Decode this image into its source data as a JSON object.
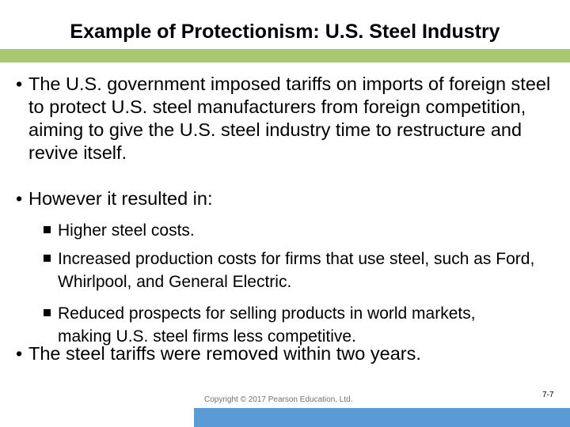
{
  "slide": {
    "title": "Example of Protectionism: U.S. Steel Industry",
    "bullet_char": "•",
    "bullets": [
      "The U.S. government imposed tariffs on imports of foreign steel to protect U.S. steel manufacturers from foreign competition, aiming to give the U.S. steel industry time to restructure and revive itself.",
      "However it resulted in:",
      "The steel tariffs were removed within two years."
    ],
    "sub_bullets": [
      "Higher steel costs.",
      "Increased production costs for firms that use steel, such as Ford, Whirlpool, and General Electric.",
      "Reduced prospects for selling products in world markets, making U.S. steel firms less competitive."
    ]
  },
  "footer": {
    "copyright": "Copyright © 2017 Pearson Education, Ltd.",
    "page_number": "7-7"
  },
  "colors": {
    "title_bar": "#a9c76e",
    "footer_bar": "#5b9bd5",
    "text": "#000000"
  }
}
